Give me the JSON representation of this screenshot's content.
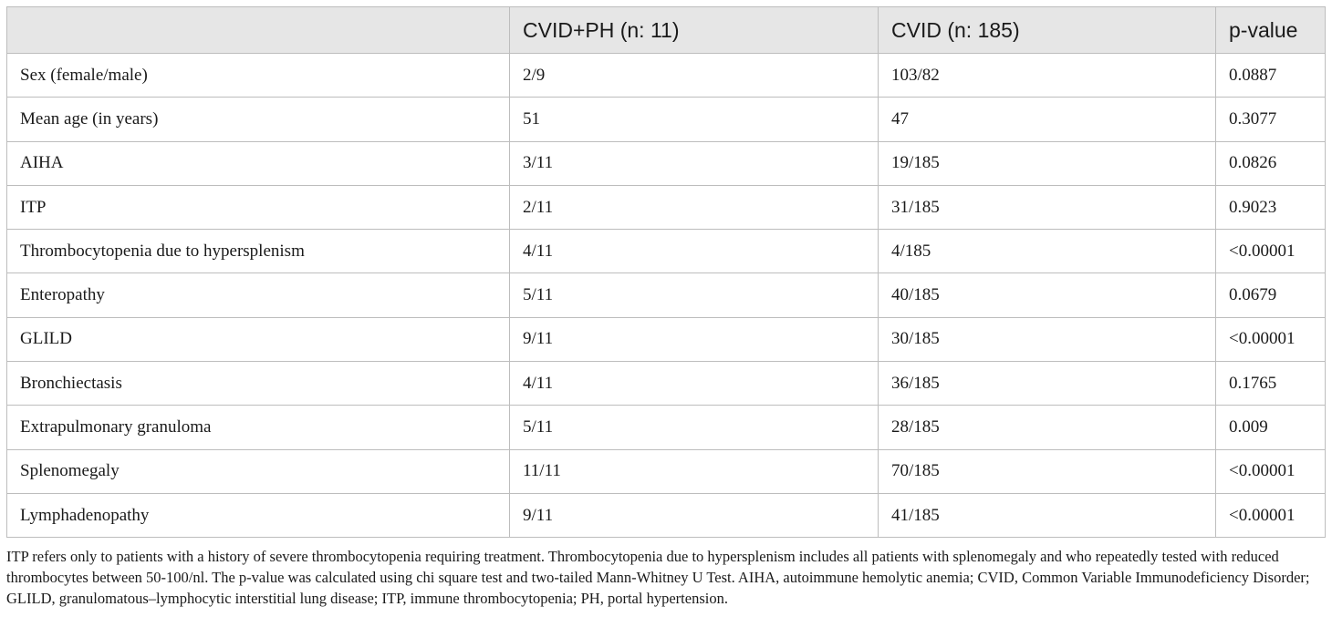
{
  "table": {
    "headers": [
      "",
      "CVID+PH (n: 11)",
      "CVID (n: 185)",
      "p-value"
    ],
    "rows": [
      [
        "Sex (female/male)",
        "2/9",
        "103/82",
        "0.0887"
      ],
      [
        "Mean age (in years)",
        "51",
        "47",
        "0.3077"
      ],
      [
        "AIHA",
        "3/11",
        "19/185",
        "0.0826"
      ],
      [
        "ITP",
        "2/11",
        "31/185",
        "0.9023"
      ],
      [
        "Thrombocytopenia due to hypersplenism",
        "4/11",
        "4/185",
        "<0.00001"
      ],
      [
        "Enteropathy",
        "5/11",
        "40/185",
        "0.0679"
      ],
      [
        "GLILD",
        "9/11",
        "30/185",
        "<0.00001"
      ],
      [
        "Bronchiectasis",
        "4/11",
        "36/185",
        "0.1765"
      ],
      [
        "Extrapulmonary granuloma",
        "5/11",
        "28/185",
        "0.009"
      ],
      [
        "Splenomegaly",
        "11/11",
        "70/185",
        "<0.00001"
      ],
      [
        "Lymphadenopathy",
        "9/11",
        "41/185",
        "<0.00001"
      ]
    ]
  },
  "footnote": "ITP refers only to patients with a history of severe thrombocytopenia requiring treatment. Thrombocytopenia due to hypersplenism includes all patients with splenomegaly and who repeatedly tested with reduced thrombocytes between 50-100/nl. The p-value was calculated using chi square test and two-tailed Mann-Whitney U Test. AIHA, autoimmune hemolytic anemia; CVID, Common Variable Immunodeficiency Disorder; GLILD, granulomatous–lymphocytic interstitial lung disease; ITP, immune thrombocytopenia; PH, portal hypertension."
}
